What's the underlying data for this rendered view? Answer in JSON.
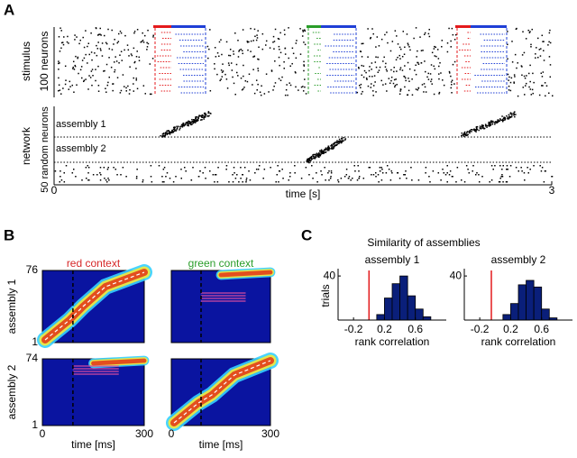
{
  "figure": {
    "panel_labels": [
      "A",
      "B",
      "C"
    ]
  },
  "panel_a": {
    "stimulus_label": "stimulus",
    "stimulus_sublabel": "100 neurons",
    "network_label": "network",
    "network_sublabel": "50 random neurons",
    "assembly_labels": [
      "assembly 1",
      "assembly 2"
    ],
    "xlabel": "time [s]",
    "xlim": [
      0,
      3
    ],
    "xticks": [
      0,
      3
    ]
  },
  "panel_b": {
    "contexts": [
      {
        "name": "red context",
        "color": "#d62728"
      },
      {
        "name": "green context",
        "color": "#2a9d2a"
      }
    ],
    "rows": [
      {
        "name": "assembly 1",
        "yticks": [
          1,
          76
        ]
      },
      {
        "name": "assembly 2",
        "yticks": [
          1,
          74
        ]
      }
    ],
    "xlabel": "time [ms]",
    "xlim": [
      0,
      300
    ],
    "xticks": [
      0,
      300
    ]
  },
  "panel_c": {
    "title": "Similarity of assemblies"
  },
  "chart_data": [
    {
      "type": "histogram",
      "title": "assembly 1",
      "xlabel": "rank correlation",
      "ylabel": "trials",
      "bins": [
        0.1,
        0.2,
        0.3,
        0.4,
        0.5,
        0.6,
        0.7,
        0.8
      ],
      "values": [
        5,
        20,
        33,
        40,
        22,
        10,
        3
      ],
      "color": "#0a1f7a",
      "xlim": [
        -0.4,
        1.0
      ],
      "xticks": [
        -0.2,
        0.2,
        0.6
      ],
      "ylim": [
        0,
        45
      ],
      "yticks": [
        40
      ],
      "vline": {
        "value": 0,
        "color": "#e31a1c"
      }
    },
    {
      "type": "histogram",
      "title": "assembly 2",
      "xlabel": "rank correlation",
      "bins": [
        0.1,
        0.2,
        0.3,
        0.4,
        0.5,
        0.6,
        0.7,
        0.8
      ],
      "values": [
        5,
        15,
        32,
        36,
        30,
        10,
        2
      ],
      "color": "#0a1f7a",
      "xlim": [
        -0.4,
        1.0
      ],
      "xticks": [
        -0.2,
        0.2,
        0.6
      ],
      "ylim": [
        0,
        45
      ],
      "yticks": [
        40
      ],
      "vline": {
        "value": -0.05,
        "color": "#e31a1c"
      }
    }
  ]
}
